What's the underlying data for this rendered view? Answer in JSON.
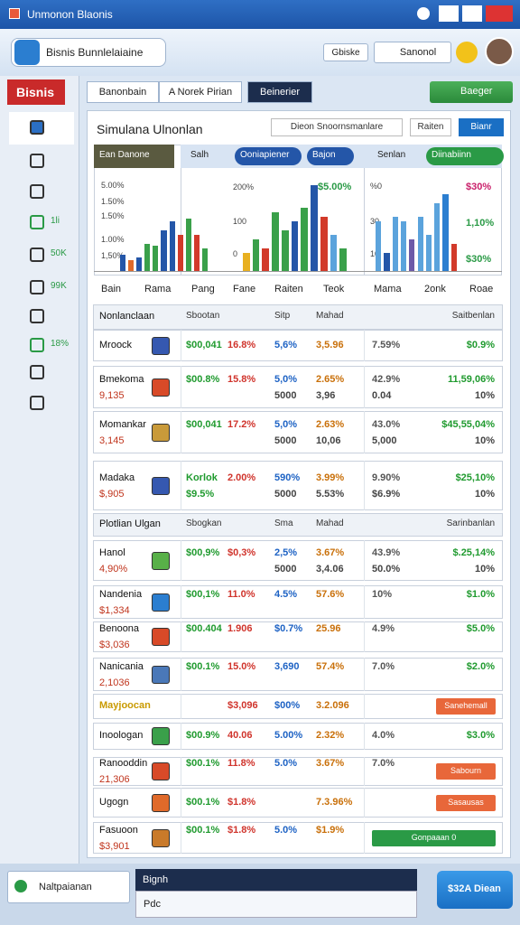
{
  "window": {
    "title": "Unmonon Blaonis"
  },
  "toolbar": {
    "app": "Bisnis Bunnlelaiaine",
    "action": "Gbiske",
    "search": "Sanonol"
  },
  "sidebar": {
    "brand": "Bisnis",
    "items": [
      "1li",
      "50K",
      "99K",
      "18%"
    ]
  },
  "tabs": [
    "Banonbain",
    "A Norek Pirian",
    "Beinerier"
  ],
  "tab_action": "Baeger",
  "panel": {
    "title": "Simulana Ulnonlan",
    "buttons": [
      "Dieon Snoornsmanlare",
      "Raiten",
      "Bianr"
    ]
  },
  "chart_headers": [
    "Ean Danone",
    "Salh",
    "Ooniapiener",
    "Bajon",
    "Senlan",
    "Diinabiinn"
  ],
  "charts": [
    {
      "ylim": [
        0,
        100
      ],
      "values": [
        18,
        12,
        15,
        30,
        28,
        45,
        55,
        40,
        58,
        40,
        25
      ],
      "colors": [
        "#2456a8",
        "#e06a2a",
        "#2456a8",
        "#3aa04a",
        "#3aa04a",
        "#2456a8",
        "#2456a8",
        "#d23a2a",
        "#3aa04a",
        "#d23a2a",
        "#3aa04a"
      ]
    },
    {
      "ylim": [
        0,
        100
      ],
      "values": [
        20,
        35,
        25,
        65,
        45,
        55,
        70,
        95,
        60,
        40,
        25
      ],
      "colors": [
        "#e8b020",
        "#3aa04a",
        "#d23a2a",
        "#3aa04a",
        "#3aa04a",
        "#2456a8",
        "#3aa04a",
        "#2456a8",
        "#d23a2a",
        "#5ba3dc",
        "#3aa04a"
      ]
    },
    {
      "ylim": [
        0,
        100
      ],
      "values": [
        55,
        20,
        60,
        55,
        35,
        60,
        40,
        75,
        85,
        30
      ],
      "colors": [
        "#5ba3dc",
        "#2456a8",
        "#5ba3dc",
        "#5ba3dc",
        "#6c5aa8",
        "#5ba3dc",
        "#5ba3dc",
        "#5ba3dc",
        "#2b7ed0",
        "#d23a2a"
      ]
    }
  ],
  "chart_labels": [
    "5.00%",
    "1.50%",
    "1.50%",
    "1.00%",
    "1,50%",
    "200%",
    "100",
    "0",
    "$5.00%",
    "%0",
    "30",
    "10",
    "$30%",
    "1,10%",
    "$30%"
  ],
  "x_labels": [
    "Bain",
    "Rama",
    "Pang",
    "Fane",
    "Raiten",
    "Teok",
    "Mama",
    "2onk",
    "Roae"
  ],
  "table": {
    "rows": [
      {
        "kind": "header",
        "name": "Nonlanclaan",
        "top": [
          "Sbootan",
          null,
          "Sitp",
          "Mahad",
          null,
          "Saitbenlan"
        ]
      },
      {
        "name": "Mroock",
        "icon": "#3558b0",
        "top": [
          "$00,041",
          "16.8%",
          "5,6%",
          "3,5.96",
          "7.59%",
          "$0.9%"
        ]
      },
      {
        "name": "Bmekoma",
        "sub": "9,135",
        "icon": "#d84a28",
        "top": [
          "$00.8%",
          "15.8%",
          "5,0%",
          "2.65%",
          "42.9%",
          "11,59,06%"
        ],
        "bottom": [
          null,
          null,
          "5000",
          "3,96",
          "0.04",
          "10%"
        ]
      },
      {
        "name": "Momankar",
        "sub": "3,145",
        "icon": "#c99a3a",
        "top": [
          "$00,041",
          "17.2%",
          "5,0%",
          "2.63%",
          "43.0%",
          "$45,55,04%"
        ],
        "bottom": [
          null,
          null,
          "5000",
          "10,06",
          "5,000",
          "10%"
        ]
      },
      {
        "name": "Madaka",
        "sub": "$,905",
        "icon": "#3558b0",
        "top": [
          "Korlok",
          "2.00%",
          "590%",
          "3.99%",
          "9.90%",
          "$25,10%"
        ],
        "bottom": [
          "$9.5%",
          null,
          "5000",
          "5.53%",
          "$6.9%",
          "10%"
        ]
      },
      {
        "kind": "header",
        "name": "Plotlian Ulgan",
        "top": [
          "Sbogkan",
          null,
          "Sma",
          "Mahad",
          null,
          "Sarinbanlan"
        ]
      },
      {
        "name": "Hanol",
        "sub": "4,90%",
        "icon": "#58b048",
        "top": [
          "$00,9%",
          "$0,3%",
          "2,5%",
          "3.67%",
          "43.9%",
          "$.25,14%"
        ],
        "bottom": [
          null,
          null,
          "5000",
          "3,4.06",
          "50.0%",
          "10%"
        ]
      },
      {
        "name": "Nandenia",
        "sub": "$1,334",
        "icon": "#2b7ed0",
        "top": [
          "$00,1%",
          "11.0%",
          "4.5%",
          "57.6%",
          "10%",
          "$1.0%"
        ]
      },
      {
        "name": "Benoona",
        "sub": "$3,036",
        "icon": "#d84a28",
        "top": [
          "$00.404",
          "1.906",
          "$0.7%",
          "25.96",
          "4.9%",
          "$5.0%"
        ]
      },
      {
        "name": "Nanicania",
        "sub": "2,1036",
        "icon": "#4a78b8",
        "top": [
          "$00.1%",
          "15.0%",
          "3,690",
          "57.4%",
          "7.0%",
          "$2.0%"
        ]
      },
      {
        "name": "Mayjoocan",
        "nameColor": "#c99a00",
        "top": [
          null,
          "$3,096",
          "$00%",
          "3.2.096",
          null,
          null
        ],
        "button": "Sanehemall",
        "buttonColor": "#e8673a"
      },
      {
        "name": "Inoologan",
        "icon": "#3aa04a",
        "top": [
          "$00.9%",
          "40.06",
          "5.00%",
          "2.32%",
          "4.0%",
          "$3.0%"
        ]
      },
      {
        "name": "Ranooddin",
        "sub": "21,306",
        "icon": "#d84a28",
        "top": [
          "$00.1%",
          "11.8%",
          "5.0%",
          "3.67%",
          "7.0%",
          null
        ],
        "button": "Sabourn",
        "buttonColor": "#e8673a"
      },
      {
        "name": "Ugogn",
        "icon": "#e06a2a",
        "top": [
          "$00.1%",
          "$1.8%",
          null,
          "7.3.96%",
          null,
          null
        ],
        "button": "Sasausas",
        "buttonColor": "#e8673a"
      },
      {
        "name": "Fasuoon",
        "sub": "$3,901",
        "icon": "#c97a2a",
        "top": [
          "$00.1%",
          "$1.8%",
          "5.0%",
          "$1.9%",
          null,
          null
        ],
        "button": "Gonpaaan 0",
        "buttonColor": "#2a9a46"
      }
    ]
  },
  "footer": {
    "status": "Naltpaianan",
    "input": "Bignh",
    "hint": "Pdc",
    "button": "$32A Diean"
  }
}
